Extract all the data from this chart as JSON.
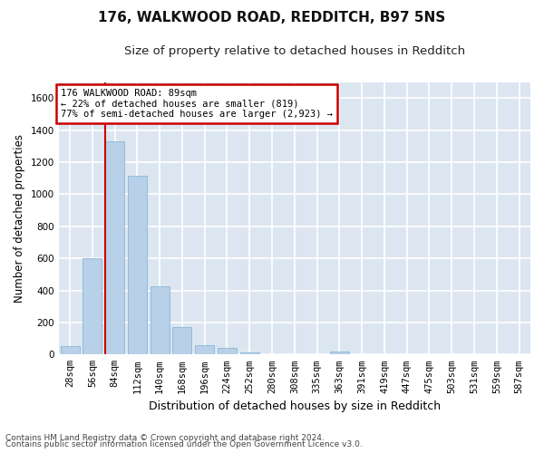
{
  "title_line1": "176, WALKWOOD ROAD, REDDITCH, B97 5NS",
  "title_line2": "Size of property relative to detached houses in Redditch",
  "xlabel": "Distribution of detached houses by size in Redditch",
  "ylabel": "Number of detached properties",
  "bar_color": "#b8d0e8",
  "bar_edge_color": "#7aafd4",
  "background_color": "#dce6f0",
  "grid_color": "#ffffff",
  "fig_background": "#ffffff",
  "categories": [
    "28sqm",
    "56sqm",
    "84sqm",
    "112sqm",
    "140sqm",
    "168sqm",
    "196sqm",
    "224sqm",
    "252sqm",
    "280sqm",
    "308sqm",
    "335sqm",
    "363sqm",
    "391sqm",
    "419sqm",
    "447sqm",
    "475sqm",
    "503sqm",
    "531sqm",
    "559sqm",
    "587sqm"
  ],
  "values": [
    50,
    600,
    1330,
    1115,
    425,
    170,
    60,
    40,
    15,
    0,
    0,
    0,
    20,
    0,
    0,
    0,
    0,
    0,
    0,
    0,
    0
  ],
  "ylim": [
    0,
    1700
  ],
  "yticks": [
    0,
    200,
    400,
    600,
    800,
    1000,
    1200,
    1400,
    1600
  ],
  "vline_bin_index": 2,
  "annotation_text": "176 WALKWOOD ROAD: 89sqm\n← 22% of detached houses are smaller (819)\n77% of semi-detached houses are larger (2,923) →",
  "annotation_box_color": "#ffffff",
  "annotation_box_edge": "#cc0000",
  "vline_color": "#cc0000",
  "footer_line1": "Contains HM Land Registry data © Crown copyright and database right 2024.",
  "footer_line2": "Contains public sector information licensed under the Open Government Licence v3.0.",
  "title_fontsize": 11,
  "subtitle_fontsize": 9.5,
  "ylabel_fontsize": 8.5,
  "xlabel_fontsize": 9,
  "tick_fontsize": 7.5,
  "annotation_fontsize": 7.5,
  "footer_fontsize": 6.5
}
